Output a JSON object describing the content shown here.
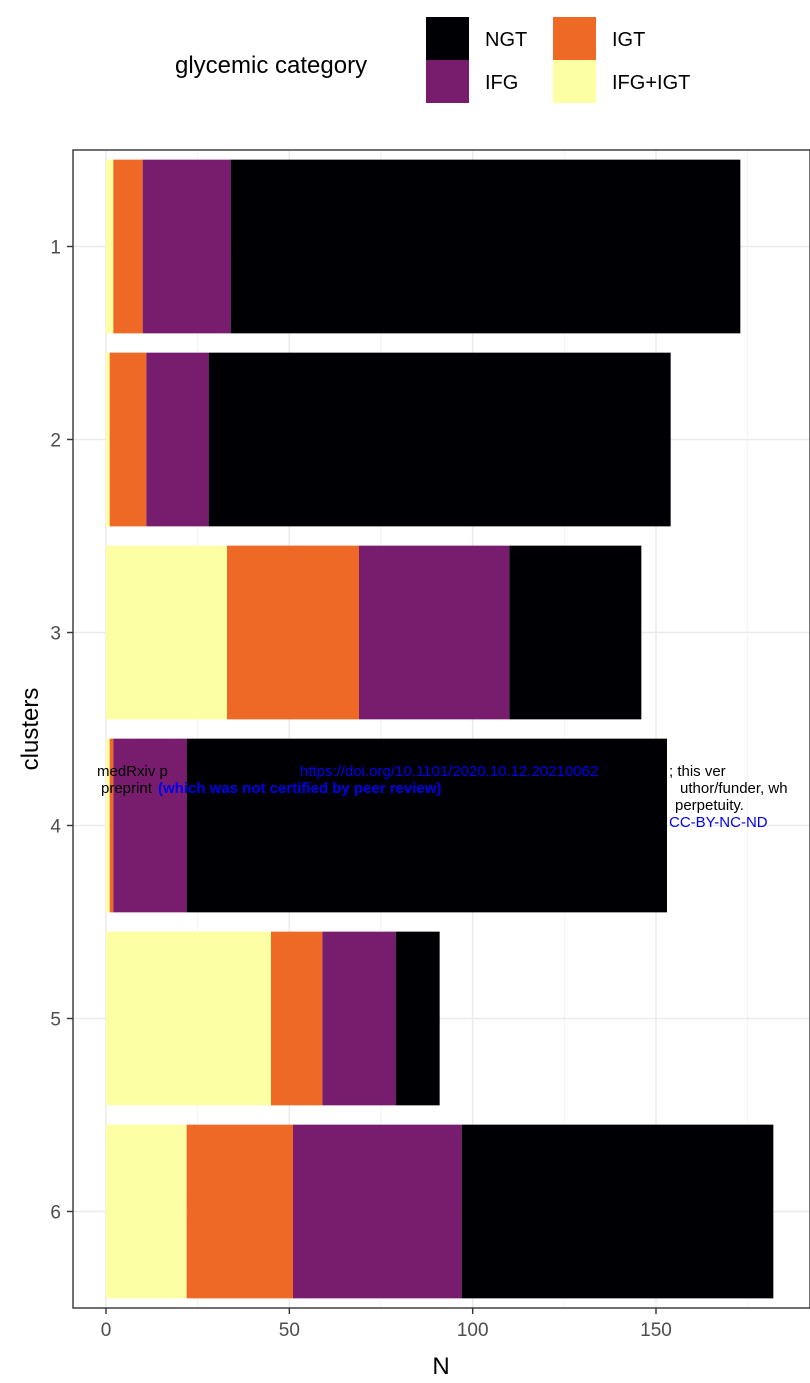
{
  "chart_data": {
    "type": "bar",
    "orientation": "horizontal",
    "stacked": true,
    "xlabel": "N",
    "ylabel": "clusters",
    "categories": [
      "1",
      "2",
      "3",
      "4",
      "5",
      "6"
    ],
    "xlim": [
      -9,
      192
    ],
    "xticks": [
      0,
      50,
      100,
      150
    ],
    "grid": true,
    "legend": {
      "title": "glycemic category",
      "position": "top",
      "entries": [
        "NGT",
        "IGT",
        "IFG",
        "IFG+IGT"
      ]
    },
    "series": [
      {
        "name": "IFG+IGT",
        "color": "#FCFFA4",
        "values": [
          2,
          1,
          33,
          1,
          45,
          22
        ]
      },
      {
        "name": "IGT",
        "color": "#ED6925",
        "values": [
          8,
          10,
          36,
          1,
          14,
          29
        ]
      },
      {
        "name": "IFG",
        "color": "#781C6D",
        "values": [
          24,
          17,
          41,
          20,
          20,
          46
        ]
      },
      {
        "name": "NGT",
        "color": "#000004",
        "values": [
          139,
          126,
          36,
          131,
          12,
          85
        ]
      }
    ]
  },
  "watermark": {
    "line1_a": "medRxiv p",
    "line1_link": "https://doi.org/10.1101/2020.10.12.20210062",
    "line1_b": "; this ver",
    "line2_a": "preprint",
    "line2_bold": "(which was not certified by peer review)",
    "line2_b": "uthor/funder, wh",
    "line3": "perpetuity.",
    "line4": "CC-BY-NC-ND"
  }
}
